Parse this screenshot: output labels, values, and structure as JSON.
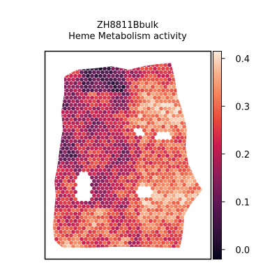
{
  "chart_data": {
    "type": "heatmap",
    "title_line1": "ZH8811Bbulk",
    "title_line2": "Heme Metabolism activity",
    "xlabel": "",
    "ylabel": "",
    "colorbar": {
      "cmap": "rocket",
      "vmin": -0.02,
      "vmax": 0.415,
      "ticks": [
        0.0,
        0.1,
        0.2,
        0.3,
        0.4
      ],
      "tick_labels": [
        "0.0",
        "0.1",
        "0.2",
        "0.3",
        "0.4"
      ]
    },
    "grid": false,
    "spots_note": "hexagonal spatial spots; left region low-to-mid activity, right region high activity",
    "colors": {
      "high": "#f6b48f",
      "mid": "#e0455a",
      "low": "#701f57",
      "very_low": "#1a1126"
    }
  }
}
